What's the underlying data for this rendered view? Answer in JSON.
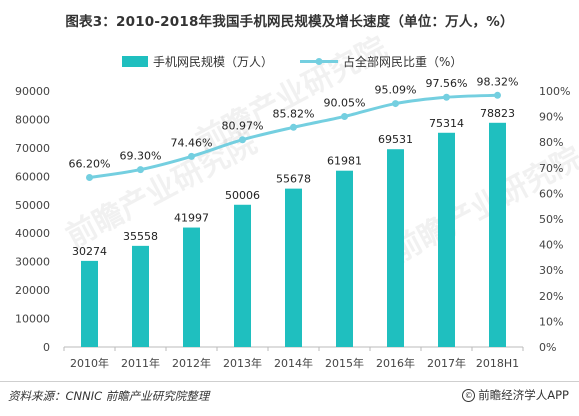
{
  "title": "图表3：2010-2018年我国手机网民规模及增长速度（单位：万人，%）",
  "footer": {
    "source": "资料来源：CNNIC  前瞻产业研究院整理",
    "brand": "前瞻经济学人APP",
    "copyright_icon": "copyright-icon"
  },
  "watermark": "前瞻产业研究院",
  "colors": {
    "bar": "#1fbfbf",
    "line": "#74cfe0",
    "marker": "#74cfe0",
    "axis": "#bbbbbb"
  },
  "chart_data": {
    "type": "bar",
    "categories": [
      "2010年",
      "2011年",
      "2012年",
      "2013年",
      "2014年",
      "2015年",
      "2016年",
      "2017年",
      "2018H1"
    ],
    "series": [
      {
        "name": "手机网民规模（万人）",
        "type": "bar",
        "axis": "left",
        "values": [
          30274,
          35558,
          41997,
          50006,
          55678,
          61981,
          69531,
          75314,
          78823
        ]
      },
      {
        "name": "占全部网民比重（%）",
        "type": "line",
        "axis": "right",
        "values": [
          66.2,
          69.3,
          74.46,
          80.97,
          85.82,
          90.05,
          95.09,
          97.56,
          98.32
        ],
        "labels": [
          "66.20%",
          "69.30%",
          "74.46%",
          "80.97%",
          "85.82%",
          "90.05%",
          "95.09%",
          "97.56%",
          "98.32%"
        ]
      }
    ],
    "y_left": {
      "range": [
        0,
        90000
      ],
      "ticks": [
        "0",
        "10000",
        "20000",
        "30000",
        "40000",
        "50000",
        "60000",
        "70000",
        "80000",
        "90000"
      ]
    },
    "y_right": {
      "range": [
        0,
        100
      ],
      "ticks": [
        "0%",
        "10%",
        "20%",
        "30%",
        "40%",
        "50%",
        "60%",
        "70%",
        "80%",
        "90%",
        "100%"
      ]
    },
    "grid": false,
    "legend_position": "top"
  }
}
